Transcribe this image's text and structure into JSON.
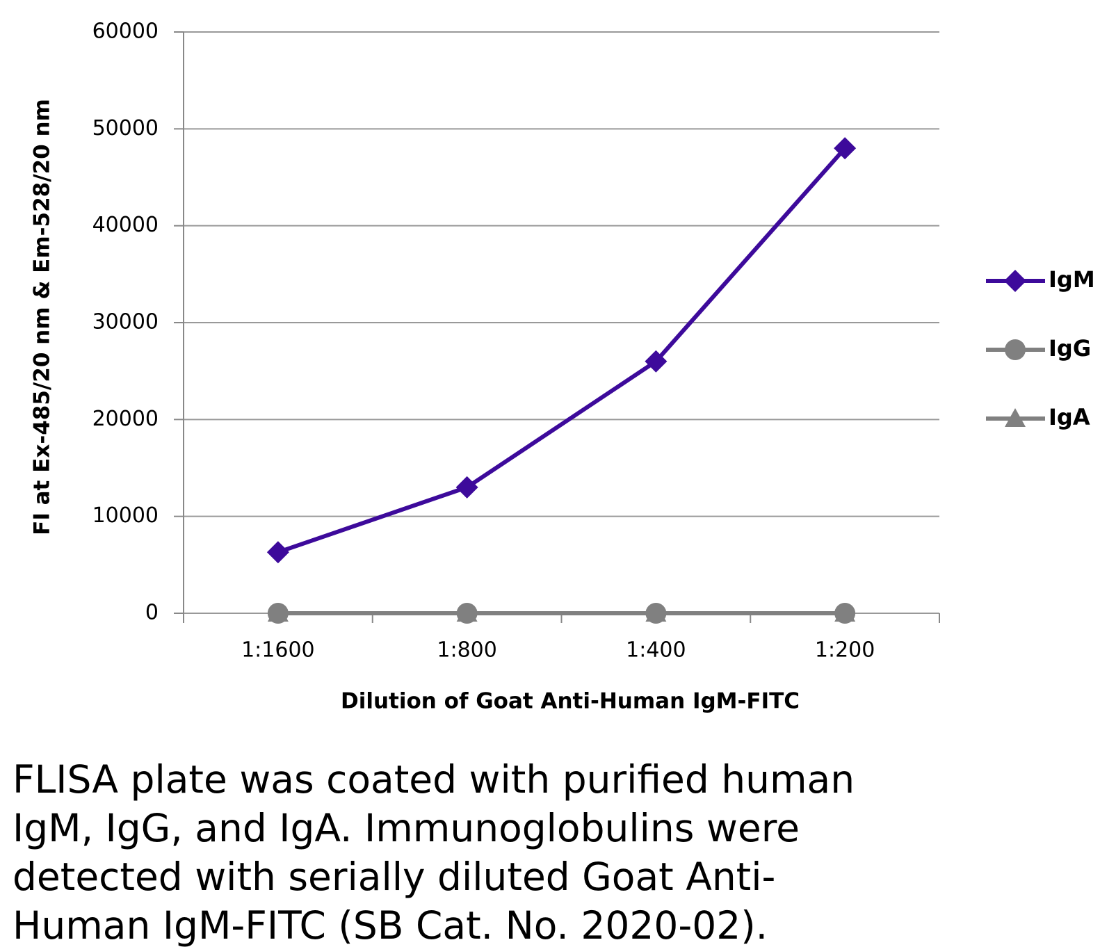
{
  "chart_data": {
    "type": "line",
    "x_label": "Dilution of Goat Anti-Human IgM-FITC",
    "y_label": "FI at Ex-485/20 nm & Em-528/20 nm",
    "categories": [
      "1:1600",
      "1:800",
      "1:400",
      "1:200"
    ],
    "series": [
      {
        "name": "IgM",
        "color": "#3d0a9b",
        "marker": "diamond",
        "values": [
          6300,
          13000,
          26000,
          48000
        ]
      },
      {
        "name": "IgG",
        "color": "#808080",
        "marker": "circle",
        "values": [
          0,
          0,
          0,
          0
        ]
      },
      {
        "name": "IgA",
        "color": "#808080",
        "marker": "triangle",
        "values": [
          0,
          0,
          0,
          0
        ]
      }
    ],
    "ylim": [
      0,
      60000
    ],
    "yticks": [
      0,
      10000,
      20000,
      30000,
      40000,
      50000,
      60000
    ],
    "grid": true,
    "legend": "right"
  },
  "caption": [
    "FLISA plate was coated with purified human",
    "IgM, IgG, and IgA.  Immunoglobulins were",
    "detected with serially diluted Goat Anti-",
    "Human IgM-FITC (SB Cat. No. 2020-02)."
  ]
}
